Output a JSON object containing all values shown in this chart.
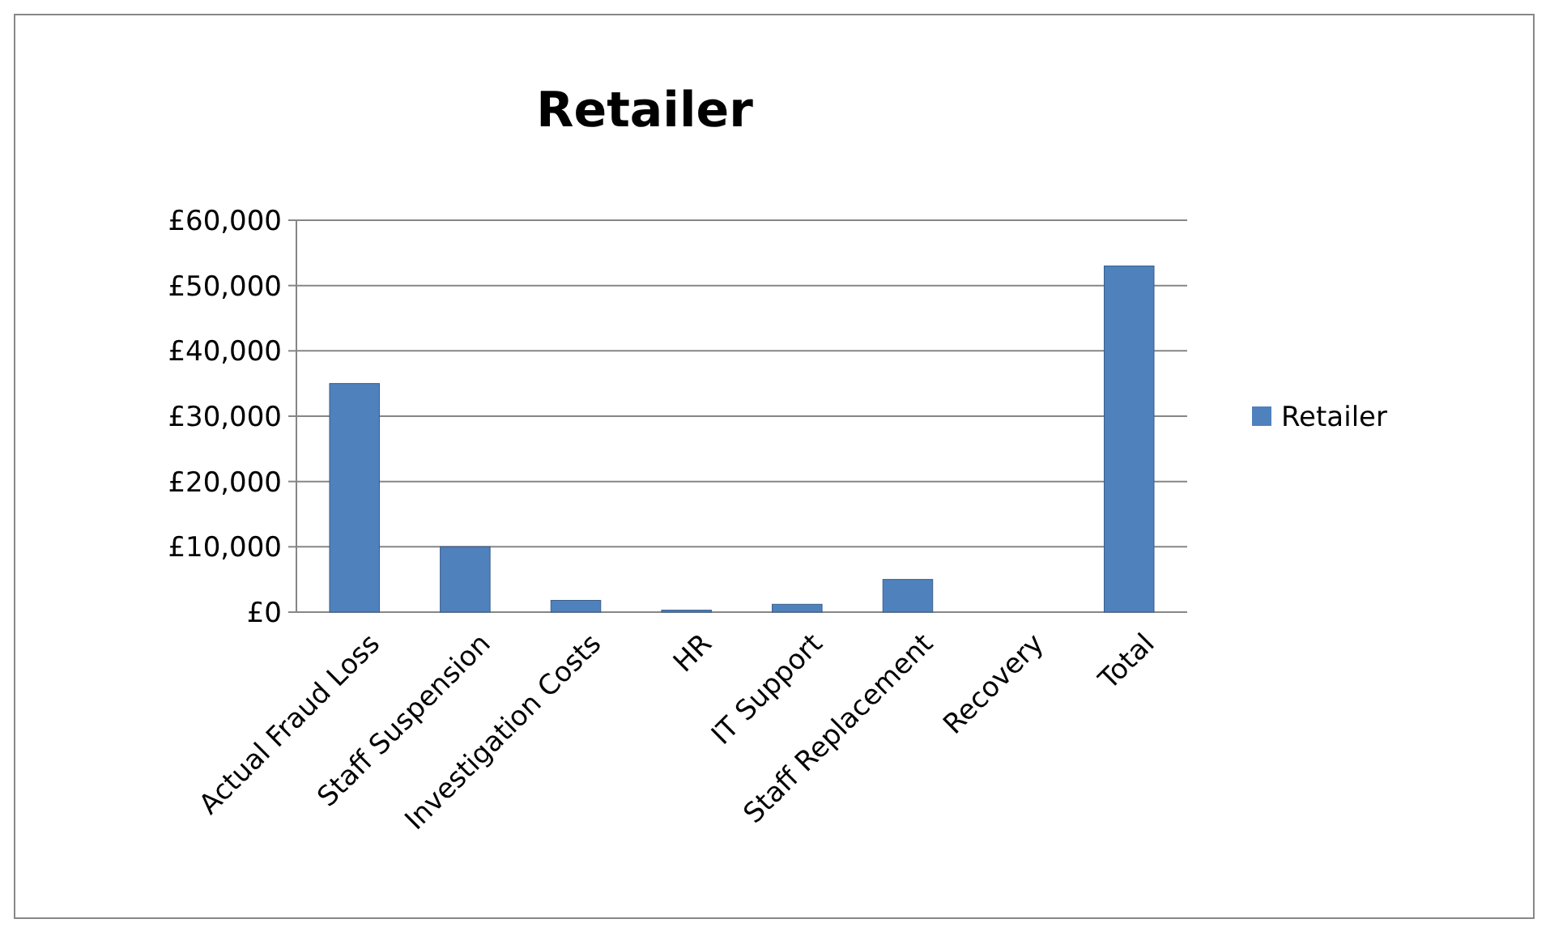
{
  "chart_data": {
    "type": "bar",
    "title": "Retailer",
    "categories": [
      "Actual Fraud Loss",
      "Staff Suspension",
      "Investigation Costs",
      "HR",
      "IT Support",
      "Staff Replacement",
      "Recovery",
      "Total"
    ],
    "series": [
      {
        "name": "Retailer",
        "color": "#4f81bd",
        "values": [
          35000,
          10000,
          1800,
          300,
          1200,
          5000,
          0,
          53000
        ]
      }
    ],
    "ylim": [
      0,
      60000
    ],
    "yticks": [
      {
        "value": 0,
        "label": "£0"
      },
      {
        "value": 10000,
        "label": "£10,000"
      },
      {
        "value": 20000,
        "label": "£20,000"
      },
      {
        "value": 30000,
        "label": "£30,000"
      },
      {
        "value": 40000,
        "label": "£40,000"
      },
      {
        "value": 50000,
        "label": "£50,000"
      },
      {
        "value": 60000,
        "label": "£60,000"
      }
    ],
    "grid": "y",
    "legend": "right"
  }
}
